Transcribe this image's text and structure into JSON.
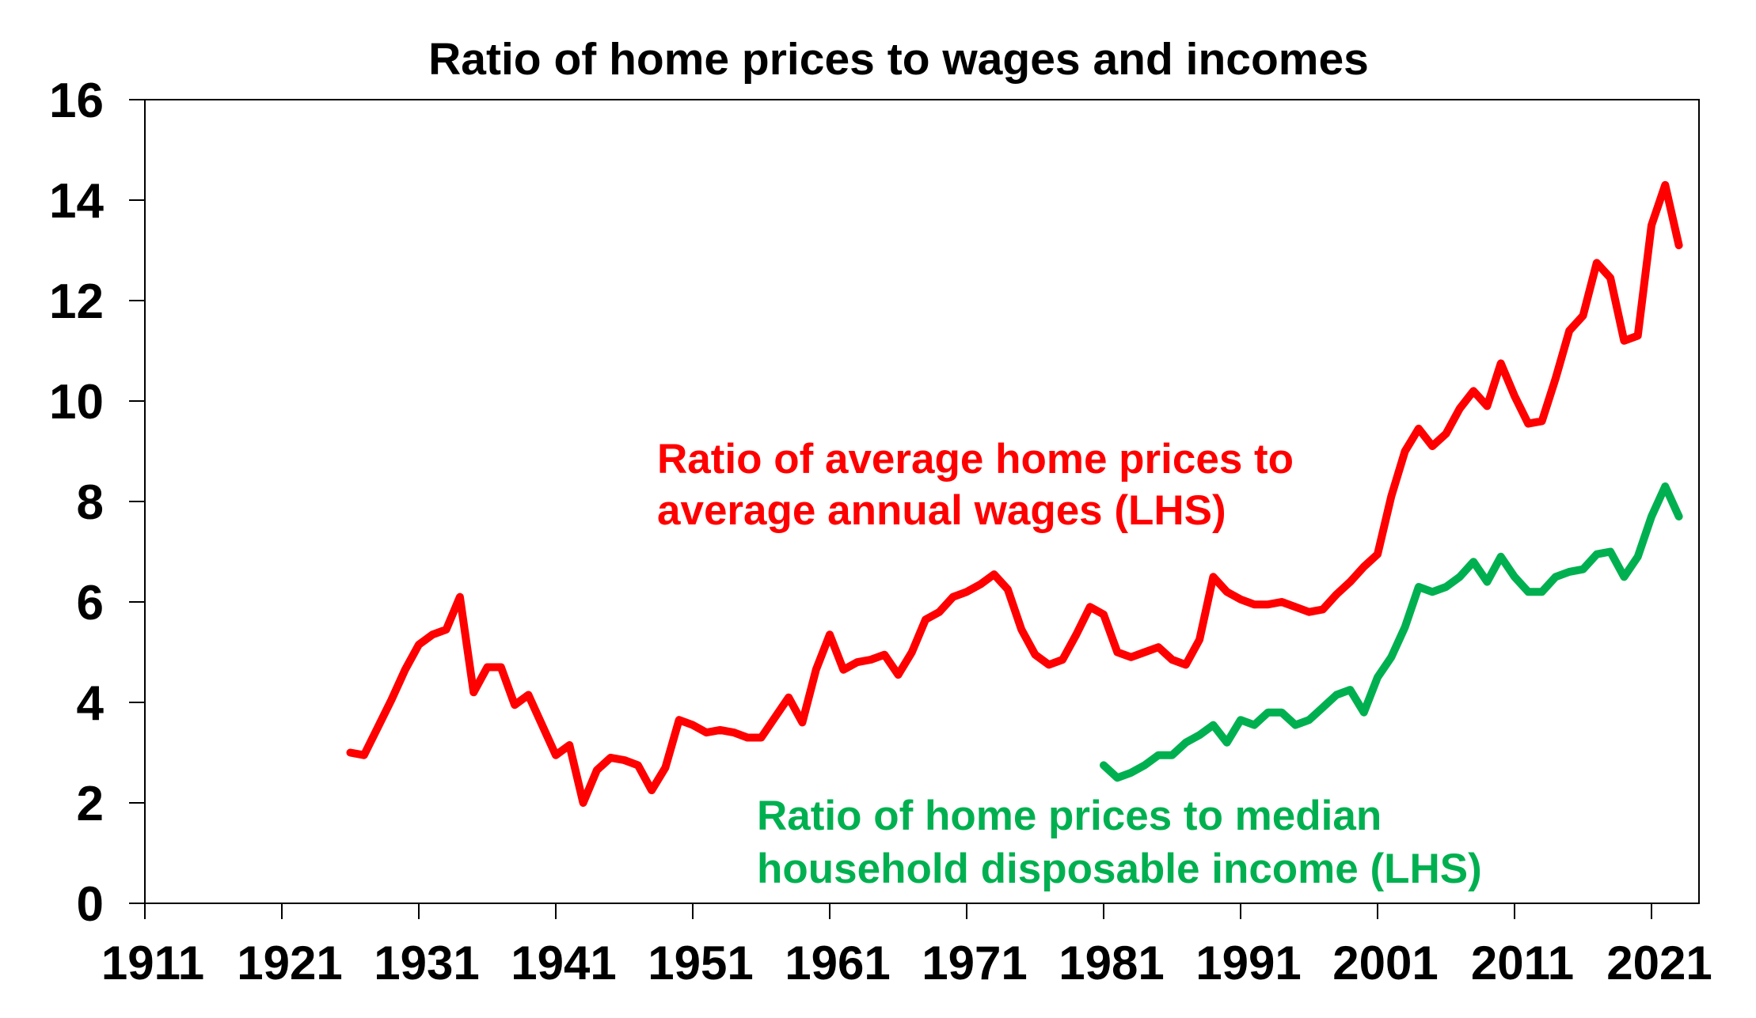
{
  "chart_data": {
    "type": "line",
    "title": "Ratio of home prices to wages and incomes",
    "xlabel": "",
    "ylabel": "",
    "ylim": [
      0,
      16
    ],
    "xlim": [
      1911,
      2023
    ],
    "grid": false,
    "y_ticks": [
      "0",
      "2",
      "4",
      "6",
      "8",
      "10",
      "12",
      "14",
      "16"
    ],
    "x_ticks": [
      "1911",
      "1921",
      "1931",
      "1941",
      "1951",
      "1961",
      "1971",
      "1981",
      "1991",
      "2001",
      "2011",
      "2021"
    ],
    "series": [
      {
        "name": "Ratio of average home prices to average annual wages (LHS)",
        "label_lines": [
          "Ratio of average home prices to",
          "average annual wages (LHS)"
        ],
        "color": "#ff0000",
        "start_year": 1926,
        "values": [
          3.0,
          2.95,
          3.5,
          4.05,
          4.65,
          5.15,
          5.35,
          5.45,
          6.1,
          4.2,
          4.7,
          4.7,
          3.95,
          4.15,
          3.55,
          2.95,
          3.15,
          2.0,
          2.65,
          2.9,
          2.85,
          2.75,
          2.25,
          2.7,
          3.65,
          3.55,
          3.4,
          3.45,
          3.4,
          3.3,
          3.3,
          3.7,
          4.1,
          3.6,
          4.65,
          5.35,
          4.65,
          4.8,
          4.85,
          4.95,
          4.55,
          5.0,
          5.65,
          5.8,
          6.1,
          6.2,
          6.35,
          6.55,
          6.25,
          5.45,
          4.95,
          4.75,
          4.85,
          5.35,
          5.9,
          5.75,
          5.0,
          4.9,
          5.0,
          5.1,
          4.85,
          4.75,
          5.25,
          6.5,
          6.2,
          6.05,
          5.95,
          5.95,
          6.0,
          5.9,
          5.8,
          5.85,
          6.15,
          6.4,
          6.7,
          6.95,
          8.1,
          9.0,
          9.45,
          9.1,
          9.35,
          9.85,
          10.2,
          9.9,
          10.75,
          10.1,
          9.55,
          9.6,
          10.45,
          11.4,
          11.7,
          12.75,
          12.45,
          11.2,
          11.3,
          13.5,
          14.3,
          13.1
        ]
      },
      {
        "name": "Ratio of home prices to median household disposable income (LHS)",
        "label_lines": [
          "Ratio of home prices to median",
          "household disposable income (LHS)"
        ],
        "color": "#00b050",
        "start_year": 1981,
        "values": [
          2.75,
          2.5,
          2.6,
          2.75,
          2.95,
          2.95,
          3.2,
          3.35,
          3.55,
          3.2,
          3.65,
          3.55,
          3.8,
          3.8,
          3.55,
          3.65,
          3.9,
          4.15,
          4.25,
          3.8,
          4.5,
          4.9,
          5.5,
          6.3,
          6.2,
          6.3,
          6.5,
          6.8,
          6.4,
          6.9,
          6.5,
          6.2,
          6.2,
          6.5,
          6.6,
          6.65,
          6.95,
          7.0,
          6.5,
          6.9,
          7.7,
          8.3,
          7.7
        ]
      }
    ]
  }
}
